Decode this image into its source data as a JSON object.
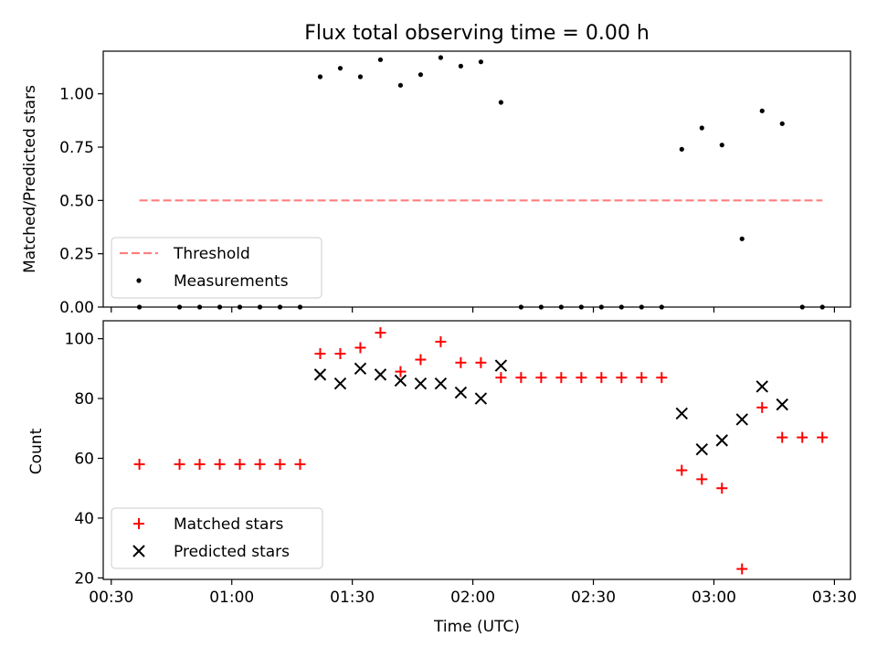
{
  "chart_data": [
    {
      "type": "scatter",
      "title": "Flux total observing time = 0.00 h",
      "ylabel": "Matched/Predicted stars",
      "xlabel": "",
      "ylim": [
        0,
        1.2
      ],
      "yticks": [
        0.0,
        0.25,
        0.5,
        0.75,
        1.0
      ],
      "ytick_labels": [
        "0.00",
        "0.25",
        "0.50",
        "0.75",
        "1.00"
      ],
      "xlim": [
        "00:28",
        "03:34"
      ],
      "xticks": [
        "00:30",
        "01:00",
        "01:30",
        "02:00",
        "02:30",
        "03:00",
        "03:30"
      ],
      "legend_position": "lower-left",
      "threshold": {
        "name": "Threshold",
        "x_start": "00:37",
        "x_end": "03:27",
        "y": 0.5,
        "color": "#ff7f7f",
        "style": "dashed"
      },
      "series": [
        {
          "name": "Measurements",
          "color": "#000000",
          "marker": "dot",
          "x": [
            "00:37",
            "00:47",
            "00:52",
            "00:57",
            "01:02",
            "01:07",
            "01:12",
            "01:17",
            "01:22",
            "01:27",
            "01:32",
            "01:37",
            "01:42",
            "01:47",
            "01:52",
            "01:57",
            "02:02",
            "02:07",
            "02:12",
            "02:17",
            "02:22",
            "02:27",
            "02:32",
            "02:37",
            "02:42",
            "02:47",
            "02:52",
            "02:57",
            "03:02",
            "03:07",
            "03:12",
            "03:17",
            "03:22",
            "03:27"
          ],
          "y": [
            0,
            0,
            0,
            0,
            0,
            0,
            0,
            0,
            1.08,
            1.12,
            1.08,
            1.16,
            1.04,
            1.09,
            1.17,
            1.13,
            1.15,
            0.96,
            0,
            0,
            0,
            0,
            0,
            0,
            0,
            0,
            0.74,
            0.84,
            0.76,
            0.32,
            0.92,
            0.86,
            0,
            0
          ]
        }
      ]
    },
    {
      "type": "scatter",
      "title": "",
      "ylabel": "Count",
      "xlabel": "Time (UTC)",
      "ylim": [
        19.5,
        106
      ],
      "yticks": [
        20,
        40,
        60,
        80,
        100
      ],
      "ytick_labels": [
        "20",
        "40",
        "60",
        "80",
        "100"
      ],
      "xlim": [
        "00:28",
        "03:34"
      ],
      "xticks": [
        "00:30",
        "01:00",
        "01:30",
        "02:00",
        "02:30",
        "03:00",
        "03:30"
      ],
      "xtick_labels": [
        "00:30",
        "01:00",
        "01:30",
        "02:00",
        "02:30",
        "03:00",
        "03:30"
      ],
      "legend_position": "lower-left",
      "series": [
        {
          "name": "Matched stars",
          "color": "#ff0000",
          "marker": "plus",
          "x": [
            "00:37",
            "00:47",
            "00:52",
            "00:57",
            "01:02",
            "01:07",
            "01:12",
            "01:17",
            "01:22",
            "01:27",
            "01:32",
            "01:37",
            "01:42",
            "01:47",
            "01:52",
            "01:57",
            "02:02",
            "02:07",
            "02:12",
            "02:17",
            "02:22",
            "02:27",
            "02:32",
            "02:37",
            "02:42",
            "02:47",
            "02:52",
            "02:57",
            "03:02",
            "03:07",
            "03:12",
            "03:17",
            "03:22",
            "03:27"
          ],
          "y": [
            58,
            58,
            58,
            58,
            58,
            58,
            58,
            58,
            95,
            95,
            97,
            102,
            89,
            93,
            99,
            92,
            92,
            87,
            87,
            87,
            87,
            87,
            87,
            87,
            87,
            87,
            56,
            53,
            50,
            23,
            77,
            67,
            67,
            67
          ]
        },
        {
          "name": "Predicted stars",
          "color": "#000000",
          "marker": "x",
          "x": [
            "01:22",
            "01:27",
            "01:32",
            "01:37",
            "01:42",
            "01:47",
            "01:52",
            "01:57",
            "02:02",
            "02:07",
            "02:52",
            "02:57",
            "03:02",
            "03:07",
            "03:12",
            "03:17"
          ],
          "y": [
            88,
            85,
            90,
            88,
            86,
            85,
            85,
            82,
            80,
            91,
            75,
            63,
            66,
            73,
            84,
            78
          ]
        }
      ]
    }
  ]
}
